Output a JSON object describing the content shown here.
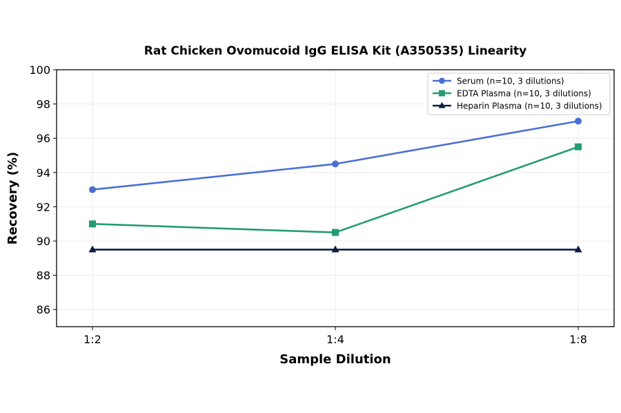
{
  "chart_data": {
    "type": "line",
    "title": "Rat Chicken Ovomucoid IgG ELISA Kit (A350535) Linearity",
    "xlabel": "Sample Dilution",
    "ylabel": "Recovery (%)",
    "categories": [
      "1:2",
      "1:4",
      "1:8"
    ],
    "ylim": [
      85,
      100
    ],
    "yticks": [
      86,
      88,
      90,
      92,
      94,
      96,
      98,
      100
    ],
    "grid": true,
    "legend_position": "top-right",
    "series": [
      {
        "name": "Serum (n=10, 3 dilutions)",
        "values": [
          93.0,
          94.5,
          97.0
        ],
        "color": "#4a6fd4",
        "marker": "circle"
      },
      {
        "name": "EDTA Plasma (n=10, 3 dilutions)",
        "values": [
          91.0,
          90.5,
          95.5
        ],
        "color": "#239b74",
        "marker": "square"
      },
      {
        "name": "Heparin Plasma (n=10, 3 dilutions)",
        "values": [
          89.5,
          89.5,
          89.5
        ],
        "color": "#0d1b45",
        "marker": "triangle"
      }
    ]
  }
}
